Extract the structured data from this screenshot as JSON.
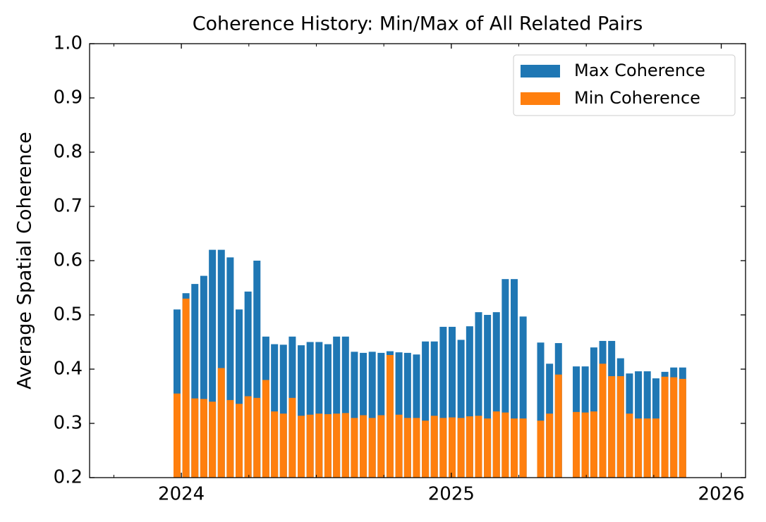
{
  "chart_data": {
    "type": "bar",
    "title": "Coherence History: Min/Max of All Related Pairs",
    "y_label": "Average Spatial Coherence",
    "x": [
      2023.984,
      2024.017,
      2024.05,
      2024.083,
      2024.115,
      2024.148,
      2024.181,
      2024.214,
      2024.247,
      2024.28,
      2024.313,
      2024.345,
      2024.378,
      2024.411,
      2024.444,
      2024.477,
      2024.51,
      2024.543,
      2024.575,
      2024.608,
      2024.641,
      2024.674,
      2024.707,
      2024.74,
      2024.773,
      2024.806,
      2024.838,
      2024.871,
      2024.904,
      2024.937,
      2024.97,
      2025.003,
      2025.036,
      2025.068,
      2025.101,
      2025.134,
      2025.167,
      2025.2,
      2025.233,
      2025.266,
      2025.331,
      2025.364,
      2025.397,
      2025.463,
      2025.496,
      2025.528,
      2025.561,
      2025.594,
      2025.627,
      2025.66,
      2025.693,
      2025.726,
      2025.758,
      2025.791,
      2025.824,
      2025.857
    ],
    "series": [
      {
        "name": "Max Coherence",
        "color": "#1f77b4",
        "values": [
          0.51,
          0.54,
          0.557,
          0.572,
          0.62,
          0.62,
          0.606,
          0.51,
          0.543,
          0.6,
          0.46,
          0.446,
          0.445,
          0.46,
          0.444,
          0.45,
          0.45,
          0.446,
          0.46,
          0.46,
          0.432,
          0.43,
          0.432,
          0.43,
          0.433,
          0.431,
          0.43,
          0.427,
          0.451,
          0.451,
          0.478,
          0.478,
          0.454,
          0.479,
          0.505,
          0.5,
          0.505,
          0.566,
          0.566,
          0.497,
          0.449,
          0.41,
          0.448,
          0.405,
          0.405,
          0.44,
          0.452,
          0.452,
          0.42,
          0.392,
          0.396,
          0.396,
          0.383,
          0.395,
          0.403,
          0.403
        ]
      },
      {
        "name": "Min Coherence",
        "color": "#ff7f0e",
        "values": [
          0.355,
          0.53,
          0.346,
          0.345,
          0.34,
          0.402,
          0.343,
          0.336,
          0.35,
          0.347,
          0.38,
          0.322,
          0.318,
          0.347,
          0.314,
          0.316,
          0.318,
          0.317,
          0.318,
          0.319,
          0.31,
          0.315,
          0.31,
          0.315,
          0.426,
          0.316,
          0.31,
          0.31,
          0.305,
          0.314,
          0.31,
          0.311,
          0.31,
          0.313,
          0.314,
          0.309,
          0.322,
          0.32,
          0.309,
          0.309,
          0.305,
          0.318,
          0.39,
          0.321,
          0.32,
          0.322,
          0.41,
          0.387,
          0.387,
          0.318,
          0.309,
          0.309,
          0.309,
          0.386,
          0.385,
          0.382
        ]
      }
    ],
    "xlim": [
      2023.66,
      2026.09
    ],
    "xticks": [
      2024,
      2025,
      2026
    ],
    "xminorticks": [
      2023.75,
      2024.25,
      2024.5,
      2024.75,
      2025.25,
      2025.5,
      2025.75
    ],
    "ylim": [
      0.2,
      1.0
    ],
    "yticks": [
      0.2,
      0.3,
      0.4,
      0.5,
      0.6,
      0.7,
      0.8,
      0.9,
      {
        "value": 1.0,
        "label": "1.0"
      }
    ],
    "legend": "upper right",
    "grid": false
  }
}
